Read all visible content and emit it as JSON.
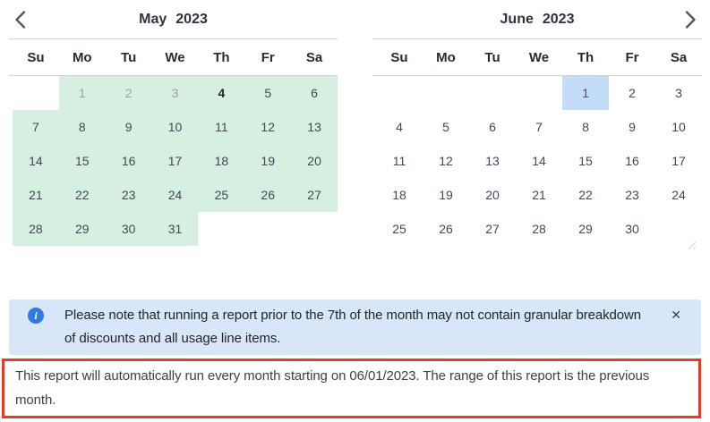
{
  "colors": {
    "range_green": "#d6efe0",
    "selected_blue": "#c3ddf6",
    "banner_bg": "#d8e6f8",
    "info_icon_blue": "#2e7ce0",
    "alert_red": "#e23e26",
    "line_gray": "#cdd1d4"
  },
  "calendars": [
    {
      "id": "may",
      "month": "May",
      "year": "2023",
      "day_headers": [
        "Su",
        "Mo",
        "Tu",
        "We",
        "Th",
        "Fr",
        "Sa"
      ],
      "weeks": [
        [
          null,
          {
            "d": "1",
            "s": "muted range"
          },
          {
            "d": "2",
            "s": "muted range"
          },
          {
            "d": "3",
            "s": "muted range"
          },
          {
            "d": "4",
            "s": "today range"
          },
          {
            "d": "5",
            "s": "range"
          },
          {
            "d": "6",
            "s": "range"
          }
        ],
        [
          {
            "d": "7",
            "s": "range"
          },
          {
            "d": "8",
            "s": "range"
          },
          {
            "d": "9",
            "s": "range"
          },
          {
            "d": "10",
            "s": "range"
          },
          {
            "d": "11",
            "s": "range"
          },
          {
            "d": "12",
            "s": "range"
          },
          {
            "d": "13",
            "s": "range"
          }
        ],
        [
          {
            "d": "14",
            "s": "range"
          },
          {
            "d": "15",
            "s": "range"
          },
          {
            "d": "16",
            "s": "range"
          },
          {
            "d": "17",
            "s": "range"
          },
          {
            "d": "18",
            "s": "range"
          },
          {
            "d": "19",
            "s": "range"
          },
          {
            "d": "20",
            "s": "range"
          }
        ],
        [
          {
            "d": "21",
            "s": "range"
          },
          {
            "d": "22",
            "s": "range"
          },
          {
            "d": "23",
            "s": "range"
          },
          {
            "d": "24",
            "s": "range"
          },
          {
            "d": "25",
            "s": "range"
          },
          {
            "d": "26",
            "s": "range"
          },
          {
            "d": "27",
            "s": "range"
          }
        ],
        [
          {
            "d": "28",
            "s": "range"
          },
          {
            "d": "29",
            "s": "range"
          },
          {
            "d": "30",
            "s": "range"
          },
          {
            "d": "31",
            "s": "range"
          },
          null,
          null,
          null
        ]
      ]
    },
    {
      "id": "june",
      "month": "June",
      "year": "2023",
      "day_headers": [
        "Su",
        "Mo",
        "Tu",
        "We",
        "Th",
        "Fr",
        "Sa"
      ],
      "weeks": [
        [
          null,
          null,
          null,
          null,
          {
            "d": "1",
            "s": "selected"
          },
          {
            "d": "2",
            "s": ""
          },
          {
            "d": "3",
            "s": ""
          }
        ],
        [
          {
            "d": "4",
            "s": ""
          },
          {
            "d": "5",
            "s": ""
          },
          {
            "d": "6",
            "s": ""
          },
          {
            "d": "7",
            "s": ""
          },
          {
            "d": "8",
            "s": ""
          },
          {
            "d": "9",
            "s": ""
          },
          {
            "d": "10",
            "s": ""
          }
        ],
        [
          {
            "d": "11",
            "s": ""
          },
          {
            "d": "12",
            "s": ""
          },
          {
            "d": "13",
            "s": ""
          },
          {
            "d": "14",
            "s": ""
          },
          {
            "d": "15",
            "s": ""
          },
          {
            "d": "16",
            "s": ""
          },
          {
            "d": "17",
            "s": ""
          }
        ],
        [
          {
            "d": "18",
            "s": ""
          },
          {
            "d": "19",
            "s": ""
          },
          {
            "d": "20",
            "s": ""
          },
          {
            "d": "21",
            "s": ""
          },
          {
            "d": "22",
            "s": ""
          },
          {
            "d": "23",
            "s": ""
          },
          {
            "d": "24",
            "s": ""
          }
        ],
        [
          {
            "d": "25",
            "s": ""
          },
          {
            "d": "26",
            "s": ""
          },
          {
            "d": "27",
            "s": ""
          },
          {
            "d": "28",
            "s": ""
          },
          {
            "d": "29",
            "s": ""
          },
          {
            "d": "30",
            "s": ""
          },
          null
        ]
      ]
    }
  ],
  "banner": {
    "text": "Please note that running a report prior to the 7th of the month may not contain granular breakdown of discounts and all usage line items.",
    "close_label": "✕"
  },
  "notice": {
    "text": "This report will automatically run every month starting on 06/01/2023. The range of this report is the previous month."
  }
}
